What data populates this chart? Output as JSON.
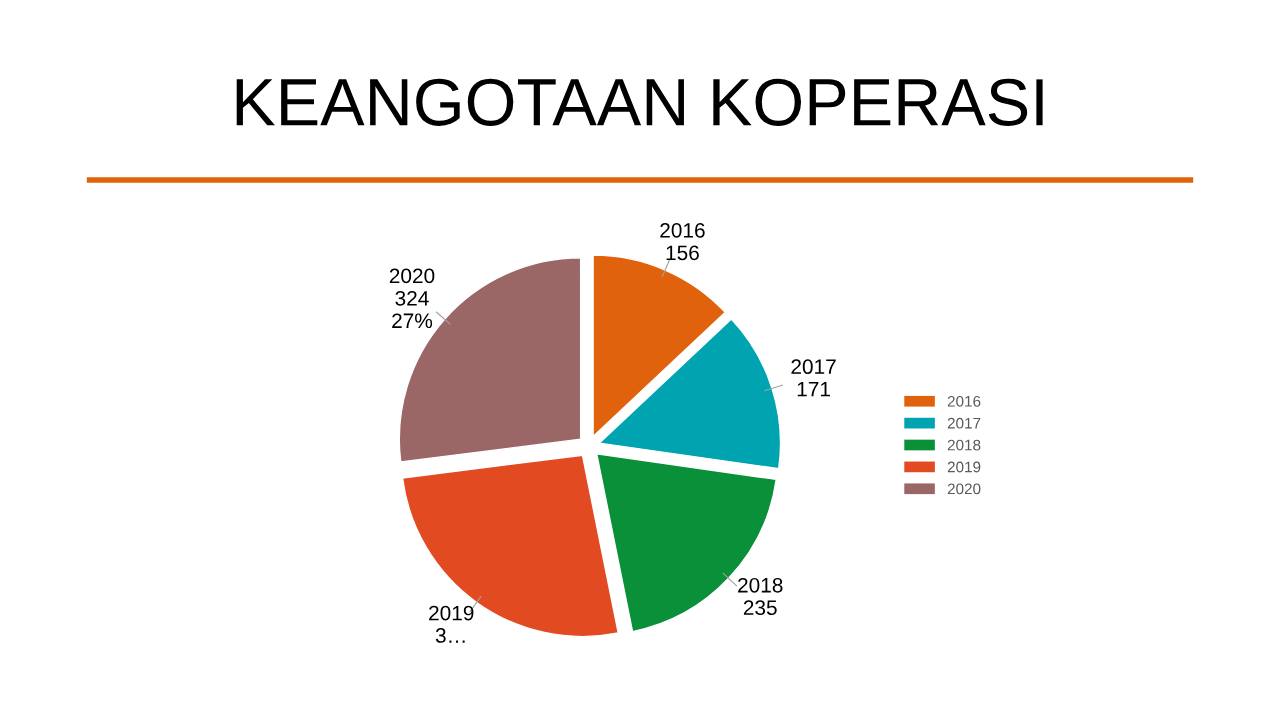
{
  "chart_data": {
    "type": "pie",
    "title": "KEANGOTAAN KOPERASI",
    "categories": [
      "2016",
      "2017",
      "2018",
      "2019",
      "2020"
    ],
    "values": [
      156,
      171,
      235,
      314,
      324
    ],
    "value_labels": [
      "156",
      "171",
      "235",
      "3…",
      "324\n27%"
    ],
    "colors": [
      "#e0620d",
      "#00a4b0",
      "#0a9038",
      "#e24a22",
      "#9a6666"
    ],
    "legend": "right"
  }
}
